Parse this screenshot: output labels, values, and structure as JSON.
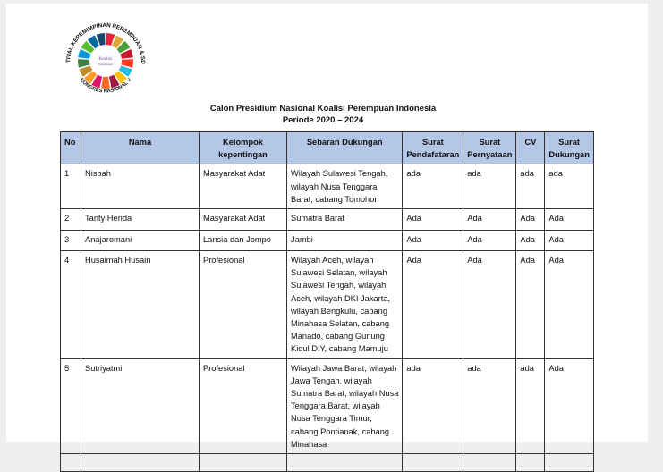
{
  "logo": {
    "ring_text_top": "FESTIVAL KEPEMIMPINAN PEREMPUAN & SDG'S",
    "ring_text_bottom": "KONGRES NASIONAL V",
    "center_text": "Koalisi Perempuan Indonesia",
    "colors": [
      "#e5243b",
      "#dda63a",
      "#4c9f38",
      "#c5192d",
      "#ff3a21",
      "#26bde2",
      "#fcc30b",
      "#a21942",
      "#fd6925",
      "#dd1367",
      "#fd9d24",
      "#bf8b2e",
      "#3f7e44",
      "#0a97d9",
      "#56c02b",
      "#00689d",
      "#19486a"
    ]
  },
  "document": {
    "title": "Calon Presidium Nasional Koalisi Perempuan Indonesia",
    "subtitle": "Periode 2020 – 2024"
  },
  "table": {
    "headers": [
      "No",
      "Nama",
      "Kelompok kepentingan",
      "Sebaran Dukungan",
      "Surat Pendafataran",
      "Surat Pernyataan",
      "CV",
      "Surat Dukungan"
    ],
    "rows": [
      {
        "no": "1",
        "nama": "Nisbah",
        "kelompok": "Masyarakat Adat",
        "sebaran": [
          "Wilayah Sulawesi Tengah,",
          "wilayah Nusa Tenggara",
          "Barat, cabang Tomohon"
        ],
        "pendaftaran": "ada",
        "pernyataan": "ada",
        "cv": "ada",
        "dukungan": "ada"
      },
      {
        "no": "2",
        "nama": "Tanty Herida",
        "kelompok": "Masyarakat Adat",
        "sebaran": [
          "Sumatra Barat"
        ],
        "pendaftaran": "Ada",
        "pernyataan": "Ada",
        "cv": "Ada",
        "dukungan": "Ada"
      },
      {
        "no": "3",
        "nama": "Anajaromani",
        "kelompok": "Lansia dan Jompo",
        "sebaran": [
          "Jambi"
        ],
        "pendaftaran": "Ada",
        "pernyataan": "Ada",
        "cv": "Ada",
        "dukungan": "Ada"
      },
      {
        "no": "4",
        "nama": "Husaimah Husain",
        "kelompok": "Profesional",
        "sebaran": [
          "Wilayah Aceh, wilayah",
          "Sulawesi Selatan, wilayah",
          "Sulawesi Tengah, wilayah",
          "Aceh, wilayah DKI Jakarta,",
          "wilayah Bengkulu, cabang",
          "Minahasa Selatan, cabang",
          "Manado, cabang Gunung",
          "Kidul DIY, cabang Mamuju"
        ],
        "pendaftaran": "Ada",
        "pernyataan": "Ada",
        "cv": "Ada",
        "dukungan": "Ada"
      },
      {
        "no": "5",
        "nama": "Sutriyatmi",
        "kelompok": "Profesional",
        "sebaran": [
          "Wilayah Jawa Barat, wilayah",
          "Jawa Tengah, wilayah",
          "Sumatra Barat, wilayah Nusa",
          "Tenggara Barat, wilayah",
          "Nusa Tenggara Timur,",
          "cabang Pontianak, cabang",
          "Minahasa"
        ],
        "pendaftaran": "ada",
        "pernyataan": "ada",
        "cv": "ada",
        "dukungan": "Ada"
      }
    ]
  }
}
